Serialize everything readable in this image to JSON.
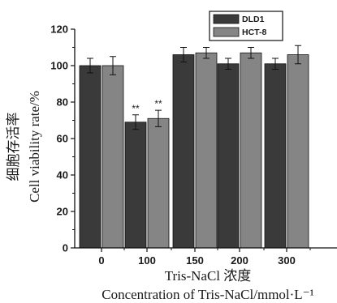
{
  "chart_data": {
    "type": "bar",
    "title": "",
    "xlabel_zh": "Tris-NaCl 浓度",
    "xlabel": "Concentration of Tris-NaCl/mmol·L⁻¹",
    "ylabel_zh": "细胞存活率",
    "ylabel": "Cell viability rate/%",
    "categories": [
      "0",
      "100",
      "150",
      "200",
      "300"
    ],
    "ylim": [
      0,
      120
    ],
    "yticks": [
      0,
      20,
      40,
      60,
      80,
      100,
      120
    ],
    "grid": false,
    "legend_position": "top-right",
    "series": [
      {
        "name": "DLD1",
        "color": "#3a3a3a",
        "values": [
          100,
          69,
          106,
          101,
          101
        ],
        "errors": [
          4,
          4,
          4,
          3,
          3
        ],
        "annotations": [
          "",
          "**",
          "",
          "",
          ""
        ]
      },
      {
        "name": "HCT-8",
        "color": "#858585",
        "values": [
          100,
          71,
          107,
          107,
          106
        ],
        "errors": [
          5,
          4.5,
          3,
          3,
          5
        ],
        "annotations": [
          "",
          "**",
          "",
          "",
          ""
        ]
      }
    ]
  }
}
